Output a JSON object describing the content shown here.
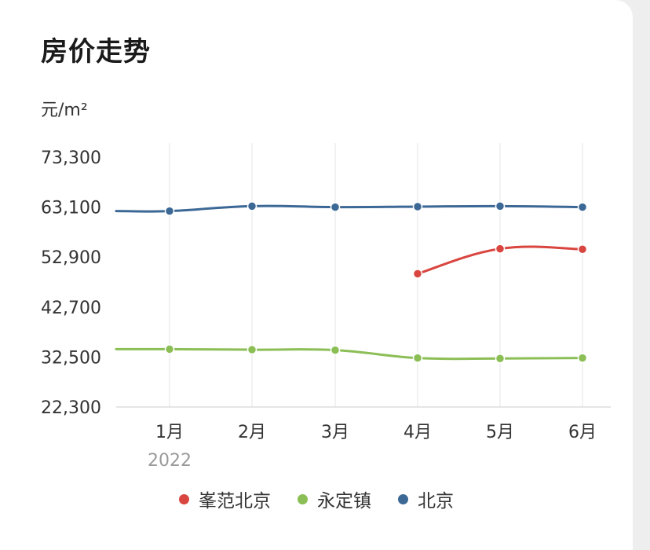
{
  "card": {
    "title": "房价走势",
    "unit": "元/m²"
  },
  "chart_data": {
    "type": "line",
    "categories": [
      "1月",
      "2月",
      "3月",
      "4月",
      "5月",
      "6月"
    ],
    "year_label": "2022",
    "ylabel": "元/m²",
    "yticks": [
      73300,
      63100,
      52900,
      42700,
      32500,
      22300
    ],
    "yticks_display": [
      "73,300",
      "63,100",
      "52,900",
      "42,700",
      "32,500",
      "22,300"
    ],
    "ylim": [
      22300,
      73300
    ],
    "grid": "vertical",
    "legend_position": "bottom-center",
    "series": [
      {
        "name": "峯范北京",
        "color": "#d9453f",
        "values": [
          null,
          null,
          null,
          49500,
          54600,
          54500
        ]
      },
      {
        "name": "永定镇",
        "color": "#8cbe56",
        "values": [
          34100,
          34000,
          33900,
          32300,
          32200,
          32300
        ]
      },
      {
        "name": "北京",
        "color": "#3c6896",
        "values": [
          62300,
          63300,
          63100,
          63200,
          63300,
          63100
        ]
      }
    ]
  }
}
